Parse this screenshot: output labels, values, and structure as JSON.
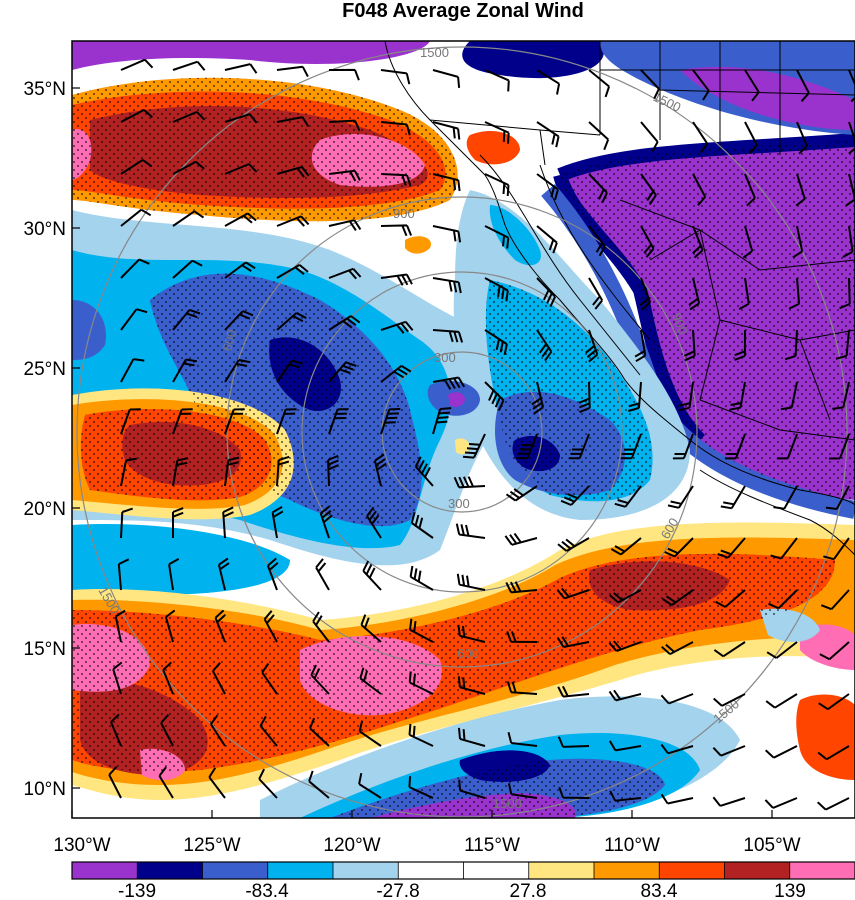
{
  "title": "F048 Average Zonal Wind",
  "map": {
    "lat_range": [
      9,
      37
    ],
    "lon_range": [
      -130,
      -102
    ],
    "lat_ticks": [
      {
        "value": 35,
        "label": "35°N"
      },
      {
        "value": 30,
        "label": "30°N"
      },
      {
        "value": 25,
        "label": "25°N"
      },
      {
        "value": 20,
        "label": "20°N"
      },
      {
        "value": 15,
        "label": "15°N"
      },
      {
        "value": 10,
        "label": "10°N"
      }
    ],
    "lon_ticks": [
      {
        "value": -130,
        "label": "130°W"
      },
      {
        "value": -125,
        "label": "125°W"
      },
      {
        "value": -120,
        "label": "120°W"
      },
      {
        "value": -115,
        "label": "115°W"
      },
      {
        "value": -110,
        "label": "110°W"
      },
      {
        "value": -105,
        "label": "105°W"
      }
    ],
    "range_rings": [
      {
        "label": "300"
      },
      {
        "label": "300"
      },
      {
        "label": "600"
      },
      {
        "label": "600"
      },
      {
        "label": "600"
      },
      {
        "label": "900"
      },
      {
        "label": "900"
      },
      {
        "label": "1500"
      },
      {
        "label": "1500"
      },
      {
        "label": "1500"
      },
      {
        "label": "1500"
      },
      {
        "label": "1500"
      }
    ]
  },
  "colorbar": {
    "colors": [
      "#9a32cd",
      "#00008b",
      "#3a5fcd",
      "#00b2ee",
      "#a4d3ee",
      "#ffffff",
      "#ffffff",
      "#ffe680",
      "#ff9900",
      "#ff4500",
      "#b22222",
      "#ff6eb4"
    ],
    "labels": [
      "-139",
      "-83.4",
      "-27.8",
      "27.8",
      "83.4",
      "139"
    ]
  }
}
